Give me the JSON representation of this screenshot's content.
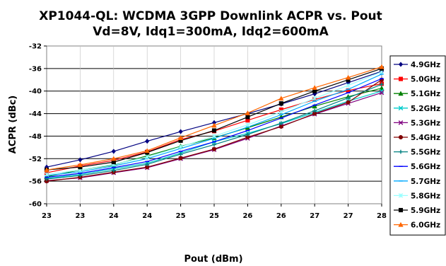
{
  "chart_data": {
    "type": "line",
    "title_line1": "XP1044-QL: WCDMA 3GPP Downlink ACPR vs. Pout",
    "title_line2": "Vd=8V, Idq1=300mA, Idq2=600mA",
    "xlabel": "Pout (dBm)",
    "ylabel": "ACPR (dBc)",
    "xlim": [
      23,
      28
    ],
    "ylim": [
      -60,
      -32
    ],
    "yticks": [
      -32,
      -36,
      -40,
      -44,
      -48,
      -52,
      -56,
      -60
    ],
    "xticks": [
      23,
      23.5,
      24,
      24.5,
      25,
      25.5,
      26,
      26.5,
      27,
      27.5,
      28
    ],
    "xtick_labels": [
      "23",
      "23",
      "24",
      "24",
      "25",
      "25",
      "26",
      "26",
      "27",
      "27",
      "28"
    ],
    "grid": "horizontal",
    "legend_position": "right",
    "series": [
      {
        "name": "4.9GHz",
        "color": "#000080",
        "marker": "diamond",
        "x": [
          23.0,
          23.5,
          24.0,
          24.5,
          25.0,
          25.5,
          26.0,
          26.5,
          27.0,
          27.5,
          28.0
        ],
        "y": [
          -53.5,
          -52.2,
          -50.7,
          -48.9,
          -47.2,
          -45.6,
          -44.0,
          -42.3,
          -40.5,
          -38.5,
          -36.5
        ]
      },
      {
        "name": "5.0GHz",
        "color": "#ff0000",
        "marker": "square",
        "x": [
          23.0,
          23.5,
          24.0,
          24.5,
          25.0,
          25.5,
          26.0,
          26.5,
          27.0,
          27.5,
          28.0
        ],
        "y": [
          -54.5,
          -53.3,
          -52.3,
          -50.8,
          -48.6,
          -47.1,
          -45.2,
          -43.3,
          -41.5,
          -39.9,
          -38.7
        ]
      },
      {
        "name": "5.1GHz",
        "color": "#008000",
        "marker": "triangle",
        "x": [
          23.0,
          23.5,
          24.0,
          24.5,
          25.0,
          25.5,
          26.0,
          26.5,
          27.0,
          27.5,
          28.0
        ],
        "y": [
          -55.2,
          -54.0,
          -53.1,
          -51.5,
          -49.8,
          -48.3,
          -46.5,
          -44.6,
          -42.7,
          -41.0,
          -39.5
        ]
      },
      {
        "name": "5.2GHz",
        "color": "#00cccc",
        "marker": "x",
        "x": [
          23.0,
          23.5,
          24.0,
          24.5,
          25.0,
          25.5,
          26.0,
          26.5,
          27.0,
          27.5,
          28.0
        ],
        "y": [
          -55.5,
          -54.8,
          -53.8,
          -52.8,
          -51.0,
          -49.0,
          -47.5,
          -45.8,
          -43.8,
          -41.8,
          -40.0
        ]
      },
      {
        "name": "5.3GHz",
        "color": "#800080",
        "marker": "x",
        "x": [
          23.0,
          23.5,
          24.0,
          24.5,
          25.0,
          25.5,
          26.0,
          26.5,
          27.0,
          27.5,
          28.0
        ],
        "y": [
          -55.9,
          -55.4,
          -54.5,
          -53.6,
          -52.0,
          -50.4,
          -48.4,
          -46.2,
          -44.1,
          -42.2,
          -40.3
        ]
      },
      {
        "name": "5.4GHz",
        "color": "#800000",
        "marker": "circle",
        "x": [
          23.0,
          23.5,
          24.0,
          24.5,
          25.0,
          25.5,
          26.0,
          26.5,
          27.0,
          27.5,
          28.0
        ],
        "y": [
          -56.0,
          -55.3,
          -54.4,
          -53.5,
          -51.9,
          -50.3,
          -48.2,
          -46.3,
          -44.0,
          -42.0,
          -38.0
        ]
      },
      {
        "name": "5.5GHz",
        "color": "#008080",
        "marker": "plus",
        "x": [
          23.0,
          23.5,
          24.0,
          24.5,
          25.0,
          25.5,
          26.0,
          26.5,
          27.0,
          27.5,
          28.0
        ],
        "y": [
          -55.6,
          -55.0,
          -54.1,
          -53.0,
          -51.2,
          -49.5,
          -47.7,
          -45.7,
          -43.5,
          -41.2,
          -38.8
        ]
      },
      {
        "name": "5.6GHz",
        "color": "#0000ff",
        "marker": "dash",
        "x": [
          23.0,
          23.5,
          24.0,
          24.5,
          25.0,
          25.5,
          26.0,
          26.5,
          27.0,
          27.5,
          28.0
        ],
        "y": [
          -55.3,
          -54.6,
          -53.6,
          -52.5,
          -50.7,
          -49.0,
          -47.0,
          -44.8,
          -42.5,
          -40.3,
          -37.8
        ]
      },
      {
        "name": "5.7GHz",
        "color": "#00aaff",
        "marker": "dash",
        "x": [
          23.0,
          23.5,
          24.0,
          24.5,
          25.0,
          25.5,
          26.0,
          26.5,
          27.0,
          27.5,
          28.0
        ],
        "y": [
          -55.0,
          -54.3,
          -53.3,
          -52.0,
          -50.2,
          -48.4,
          -46.4,
          -44.2,
          -41.8,
          -39.7,
          -37.0
        ]
      },
      {
        "name": "5.8GHz",
        "color": "#99ffff",
        "marker": "star",
        "x": [
          23.0,
          23.5,
          24.0,
          24.5,
          25.0,
          25.5,
          26.0,
          26.5,
          27.0,
          27.5,
          28.0
        ],
        "y": [
          -54.8,
          -54.0,
          -53.0,
          -51.7,
          -49.9,
          -48.0,
          -46.0,
          -43.7,
          -41.3,
          -39.0,
          -36.6
        ]
      },
      {
        "name": "5.9GHz",
        "color": "#000000",
        "marker": "square",
        "x": [
          23.0,
          23.5,
          24.0,
          24.5,
          25.0,
          25.5,
          26.0,
          26.5,
          27.0,
          27.5,
          28.0
        ],
        "y": [
          -54.0,
          -53.5,
          -52.6,
          -50.9,
          -48.8,
          -47.0,
          -44.6,
          -42.2,
          -40.0,
          -38.0,
          -36.0
        ]
      },
      {
        "name": "6.0GHz",
        "color": "#ff6600",
        "marker": "triangle",
        "x": [
          23.0,
          23.5,
          24.0,
          24.5,
          25.0,
          25.5,
          26.0,
          26.5,
          27.0,
          27.5,
          28.0
        ],
        "y": [
          -54.0,
          -53.1,
          -52.0,
          -50.6,
          -48.3,
          -46.1,
          -43.9,
          -41.3,
          -39.4,
          -37.6,
          -35.7
        ]
      }
    ]
  }
}
